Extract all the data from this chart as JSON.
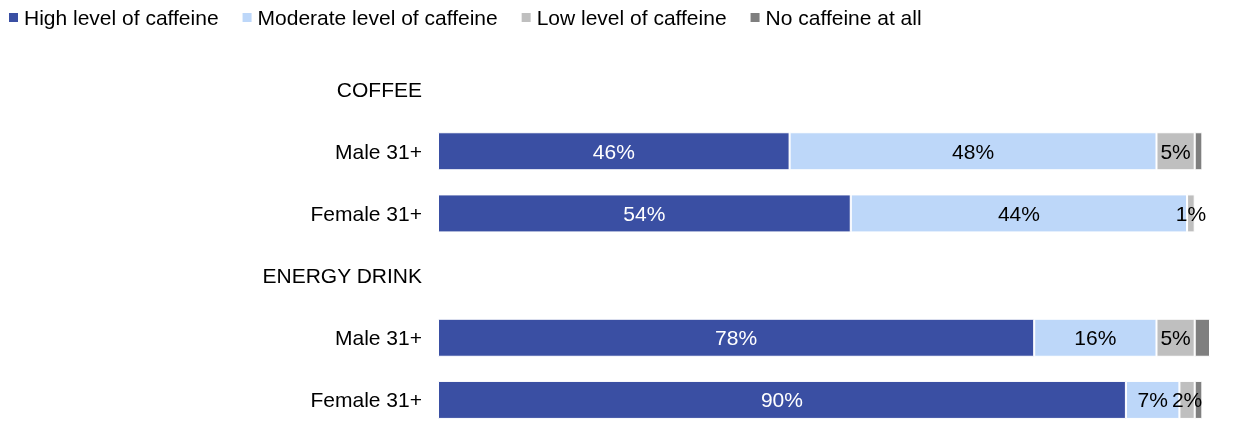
{
  "chart_data": {
    "type": "bar",
    "orientation": "horizontal",
    "stacked": true,
    "categories": [
      "COFFEE",
      "Male 31+",
      "Female 31+",
      "ENERGY DRINK",
      "Male 31+",
      "Female 31+"
    ],
    "series": [
      {
        "name": "High level of caffeine",
        "color": "#3a4fa3",
        "values": [
          null,
          46,
          54,
          null,
          78,
          90
        ],
        "value_labels": [
          null,
          "46%",
          "54%",
          null,
          "78%",
          "90%"
        ]
      },
      {
        "name": "Moderate level of caffeine",
        "color": "#bdd7f9",
        "values": [
          null,
          48,
          44,
          null,
          16,
          7
        ],
        "value_labels": [
          null,
          "48%",
          "44%",
          null,
          "16%",
          "7%"
        ]
      },
      {
        "name": "Low level of caffeine",
        "color": "#bfbfbf",
        "values": [
          null,
          5,
          1,
          null,
          5,
          2
        ],
        "value_labels": [
          null,
          "5%",
          "1%",
          null,
          "5%",
          "2%"
        ]
      },
      {
        "name": "No caffeine at all",
        "color": "#7f7f7f",
        "values": [
          null,
          1,
          null,
          null,
          2,
          1
        ],
        "value_labels": [
          null,
          null,
          null,
          null,
          null,
          null
        ]
      }
    ],
    "xlim": [
      0,
      101
    ],
    "tick_labels": "y",
    "legend": "top left"
  }
}
